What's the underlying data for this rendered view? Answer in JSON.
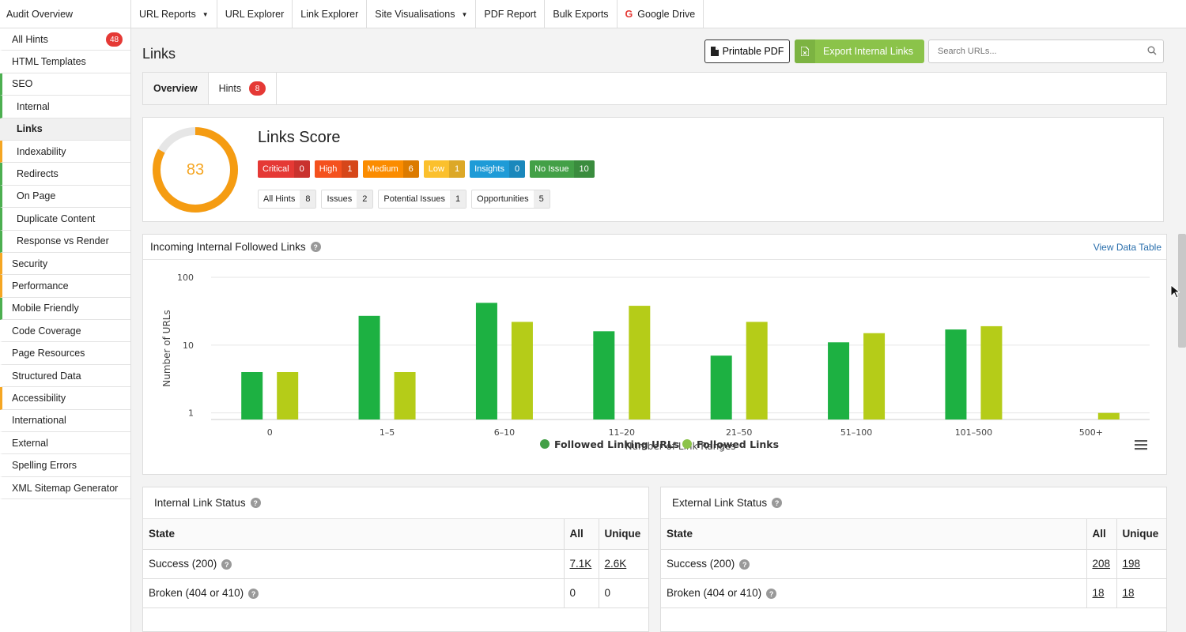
{
  "topnav": {
    "audit": "Audit Overview",
    "items": [
      {
        "label": "URL Reports",
        "caret": true
      },
      {
        "label": "URL Explorer",
        "caret": false
      },
      {
        "label": "Link Explorer",
        "caret": false
      },
      {
        "label": "Site Visualisations",
        "caret": true
      },
      {
        "label": "PDF Report",
        "caret": false
      },
      {
        "label": "Bulk Exports",
        "caret": false
      },
      {
        "label": "Google Drive",
        "caret": false,
        "icon": "google-icon"
      }
    ]
  },
  "sidebar": {
    "items": [
      {
        "label": "All Hints",
        "badge": "48",
        "sub": false,
        "accent": ""
      },
      {
        "label": "HTML Templates",
        "sub": false,
        "accent": ""
      },
      {
        "label": "SEO",
        "sub": false,
        "accent": "green"
      },
      {
        "label": "Internal",
        "sub": true,
        "accent": "green"
      },
      {
        "label": "Links",
        "sub": true,
        "accent": "",
        "active": true
      },
      {
        "label": "Indexability",
        "sub": true,
        "accent": "orange"
      },
      {
        "label": "Redirects",
        "sub": true,
        "accent": "green"
      },
      {
        "label": "On Page",
        "sub": true,
        "accent": "green"
      },
      {
        "label": "Duplicate Content",
        "sub": true,
        "accent": "green"
      },
      {
        "label": "Response vs Render",
        "sub": true,
        "accent": "green"
      },
      {
        "label": "Security",
        "sub": false,
        "accent": "orange"
      },
      {
        "label": "Performance",
        "sub": false,
        "accent": "orange"
      },
      {
        "label": "Mobile Friendly",
        "sub": false,
        "accent": "green"
      },
      {
        "label": "Code Coverage",
        "sub": false,
        "accent": ""
      },
      {
        "label": "Page Resources",
        "sub": false,
        "accent": ""
      },
      {
        "label": "Structured Data",
        "sub": false,
        "accent": ""
      },
      {
        "label": "Accessibility",
        "sub": false,
        "accent": "orange"
      },
      {
        "label": "International",
        "sub": false,
        "accent": ""
      },
      {
        "label": "External",
        "sub": false,
        "accent": ""
      },
      {
        "label": "Spelling Errors",
        "sub": false,
        "accent": ""
      },
      {
        "label": "XML Sitemap Generator",
        "sub": false,
        "accent": ""
      }
    ]
  },
  "header": {
    "title": "Links",
    "pdf_button": "Printable PDF",
    "export_button": "Export Internal Links",
    "search_placeholder": "Search URLs..."
  },
  "tabs": {
    "overview": "Overview",
    "hints": "Hints",
    "hints_badge": "8"
  },
  "score": {
    "title": "Links Score",
    "value": "83",
    "value_num": 83,
    "severity": [
      {
        "label": "Critical",
        "count": "0",
        "color": "#e53935"
      },
      {
        "label": "High",
        "count": "1",
        "color": "#f4511e"
      },
      {
        "label": "Medium",
        "count": "6",
        "color": "#fb8c00"
      },
      {
        "label": "Low",
        "count": "1",
        "color": "#fbc02d"
      },
      {
        "label": "Insights",
        "count": "0",
        "color": "#1e9bd7"
      },
      {
        "label": "No Issue",
        "count": "10",
        "color": "#43a047"
      }
    ],
    "types": [
      {
        "label": "All Hints",
        "count": "8"
      },
      {
        "label": "Issues",
        "count": "2"
      },
      {
        "label": "Potential Issues",
        "count": "1"
      },
      {
        "label": "Opportunities",
        "count": "5"
      }
    ]
  },
  "chart_section": {
    "title": "Incoming Internal Followed Links",
    "view_table": "View Data Table"
  },
  "chart_data": {
    "type": "bar",
    "yscale": "log",
    "title": "Incoming Internal Followed Links",
    "xlabel": "Number of Link Ranges",
    "ylabel": "Number of URLs",
    "ylim": [
      0.8,
      100
    ],
    "yticks": [
      "1",
      "10",
      "100"
    ],
    "categories": [
      "0",
      "1–5",
      "6–10",
      "11–20",
      "21–50",
      "51–100",
      "101–500",
      "500+"
    ],
    "series": [
      {
        "name": "Followed Linking URLs",
        "color": "#1db142",
        "values": [
          4,
          27,
          42,
          16,
          7,
          11,
          17,
          0
        ]
      },
      {
        "name": "Followed Links",
        "color": "#b5cc18",
        "values": [
          4,
          4,
          22,
          38,
          22,
          15,
          19,
          1
        ]
      }
    ]
  },
  "internal_status": {
    "title": "Internal Link Status",
    "headers": [
      "State",
      "All",
      "Unique"
    ],
    "rows": [
      {
        "state": "Success (200)",
        "all": "7.1K",
        "unique": "2.6K",
        "link": true
      },
      {
        "state": "Broken (404 or 410)",
        "all": "0",
        "unique": "0",
        "link": false
      }
    ]
  },
  "external_status": {
    "title": "External Link Status",
    "headers": [
      "State",
      "All",
      "Unique"
    ],
    "rows": [
      {
        "state": "Success (200)",
        "all": "208",
        "unique": "198",
        "link": true
      },
      {
        "state": "Broken (404 or 410)",
        "all": "18",
        "unique": "18",
        "link": true
      }
    ]
  }
}
